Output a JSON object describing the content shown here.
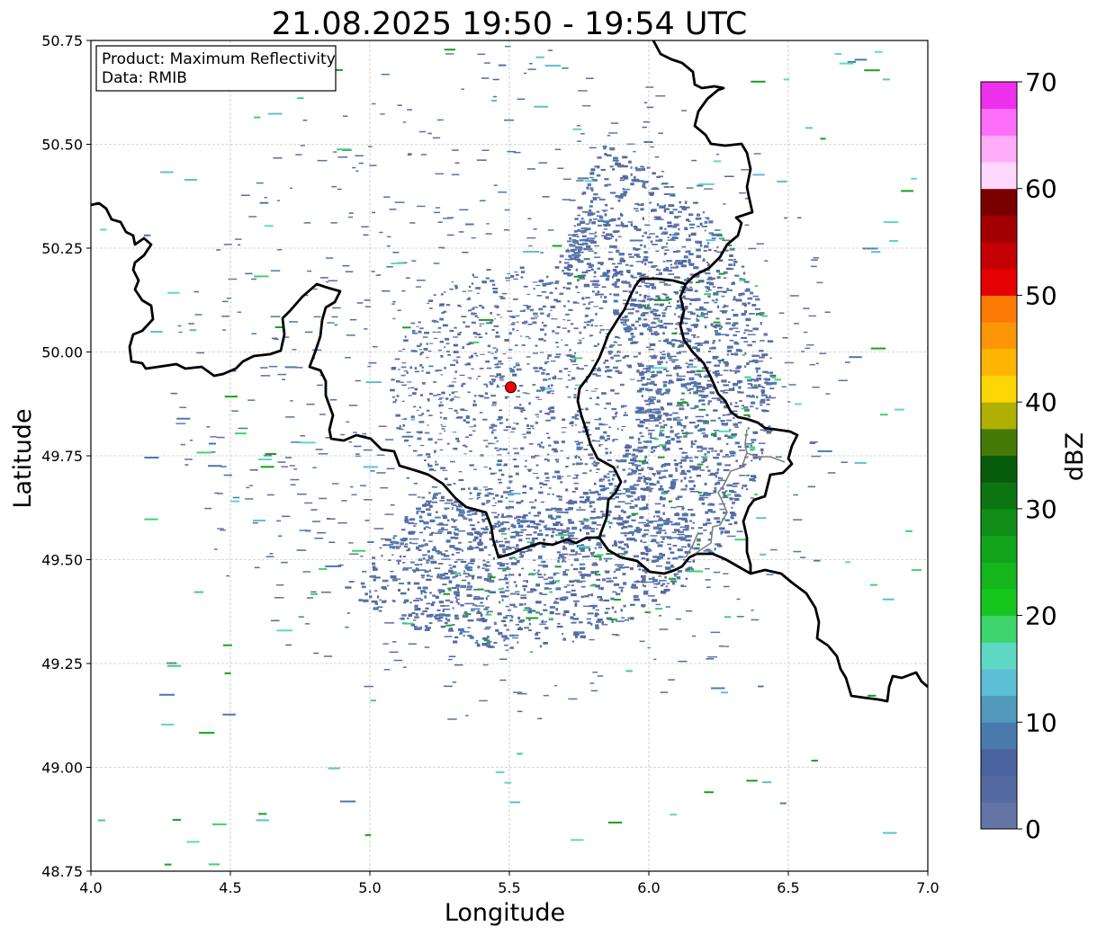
{
  "title": "21.08.2025 19:50 - 19:54 UTC",
  "info_box": {
    "product": "Product: Maximum Reflectivity",
    "data": "Data: RMIB"
  },
  "axes": {
    "xlabel": "Longitude",
    "ylabel": "Latitude",
    "xlim": [
      4.0,
      7.0
    ],
    "ylim": [
      48.75,
      50.75
    ],
    "xticks": [
      "4.0",
      "4.5",
      "5.0",
      "5.5",
      "6.0",
      "6.5",
      "7.0"
    ],
    "yticks": [
      "48.75",
      "49.00",
      "49.25",
      "49.50",
      "49.75",
      "50.00",
      "50.25",
      "50.50",
      "50.75"
    ],
    "grid": true
  },
  "radar_site": {
    "lon": 5.505,
    "lat": 49.915,
    "color": "#ff0000"
  },
  "colorbar": {
    "label": "dBZ",
    "min": 0,
    "max": 70,
    "ticks": [
      "0",
      "10",
      "20",
      "30",
      "40",
      "50",
      "60",
      "70"
    ],
    "colors": [
      "#6474a6",
      "#556aa1",
      "#4a639e",
      "#4a79ad",
      "#519abb",
      "#5dbfd6",
      "#5fd8c3",
      "#3dd46b",
      "#16c81e",
      "#14b61c",
      "#12a41a",
      "#108e18",
      "#0c7411",
      "#075c0b",
      "#457a07",
      "#afb003",
      "#fcd705",
      "#fdb504",
      "#fd9606",
      "#fd7b05",
      "#e40003",
      "#c30003",
      "#a20001",
      "#7a0000",
      "#ffd8ff",
      "#ffadf8",
      "#ff6ef8",
      "#ec30ec"
    ]
  },
  "colors": {
    "border": "#000000",
    "minor_border": "#808080",
    "grid": "#b0b0b0",
    "echo_main": "#5a6ea4"
  }
}
